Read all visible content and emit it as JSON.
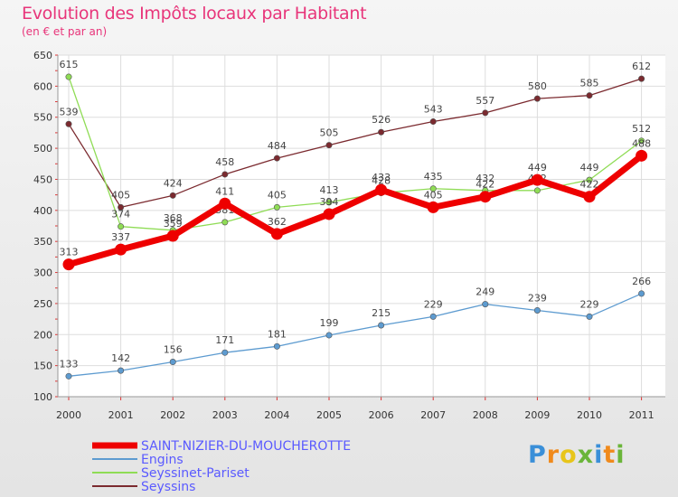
{
  "chart_data": {
    "type": "line",
    "title": "Evolution des Impôts locaux par Habitant",
    "subtitle": "(en € et par an)",
    "categories": [
      "2000",
      "2001",
      "2002",
      "2003",
      "2004",
      "2005",
      "2006",
      "2007",
      "2008",
      "2009",
      "2010",
      "2011"
    ],
    "ylim": [
      100,
      650
    ],
    "yticks": [
      100,
      150,
      200,
      250,
      300,
      350,
      400,
      450,
      500,
      550,
      600,
      650
    ],
    "grid": true,
    "legend_position": "bottom-left",
    "series": [
      {
        "name": "Seyssins",
        "color": "#7b2a2f",
        "values": [
          539,
          405,
          424,
          458,
          484,
          505,
          526,
          543,
          557,
          580,
          585,
          612
        ]
      },
      {
        "name": "Seyssinet-Pariset",
        "color": "#8fdc55",
        "values": [
          615,
          374,
          368,
          381,
          405,
          413,
          428,
          435,
          432,
          432,
          449,
          512
        ]
      },
      {
        "name": "Engins",
        "color": "#5d9bd0",
        "values": [
          133,
          142,
          156,
          171,
          181,
          199,
          215,
          229,
          249,
          239,
          229,
          266
        ]
      },
      {
        "name": "SAINT-NIZIER-DU-MOUCHEROTTE",
        "color": "#ee0000",
        "values": [
          313,
          337,
          359,
          411,
          362,
          394,
          433,
          405,
          422,
          449,
          422,
          488
        ]
      }
    ],
    "legend_order": [
      "SAINT-NIZIER-DU-MOUCHEROTTE",
      "Engins",
      "Seyssinet-Pariset",
      "Seyssins"
    ]
  },
  "logo": {
    "letters": [
      "P",
      "r",
      "o",
      "x",
      "i",
      "t",
      "i"
    ],
    "colors": [
      "#3a8fd8",
      "#f08a1c",
      "#e8c51a",
      "#6ab539",
      "#3a8fd8",
      "#f08a1c",
      "#6ab539"
    ]
  }
}
